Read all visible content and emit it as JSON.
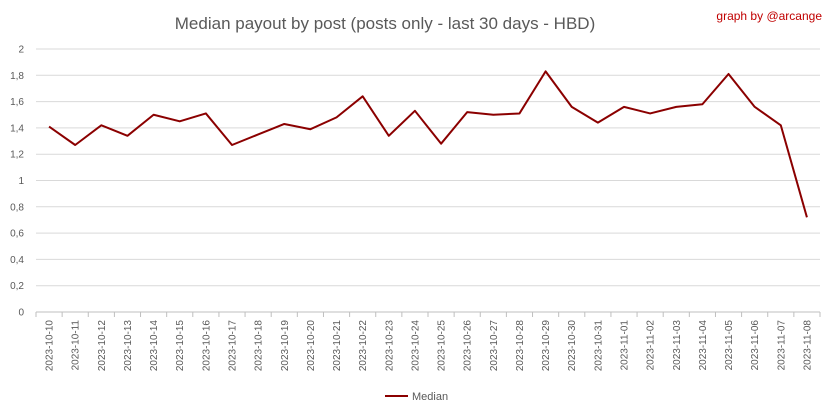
{
  "chart_data": {
    "type": "line",
    "title": "Median payout by post (posts only - last 30 days - HBD)",
    "credit": "graph by @arcange",
    "xlabel": "",
    "ylabel": "",
    "ylim": [
      0,
      2
    ],
    "yticks": [
      "0",
      "0,2",
      "0,4",
      "0,6",
      "0,8",
      "1",
      "1,2",
      "1,4",
      "1,6",
      "1,8",
      "2"
    ],
    "grid": true,
    "legend_position": "bottom",
    "categories": [
      "2023-10-10",
      "2023-10-11",
      "2023-10-12",
      "2023-10-13",
      "2023-10-14",
      "2023-10-15",
      "2023-10-16",
      "2023-10-17",
      "2023-10-18",
      "2023-10-19",
      "2023-10-20",
      "2023-10-21",
      "2023-10-22",
      "2023-10-23",
      "2023-10-24",
      "2023-10-25",
      "2023-10-26",
      "2023-10-27",
      "2023-10-28",
      "2023-10-29",
      "2023-10-30",
      "2023-10-31",
      "2023-11-01",
      "2023-11-02",
      "2023-11-03",
      "2023-11-04",
      "2023-11-05",
      "2023-11-06",
      "2023-11-07",
      "2023-11-08"
    ],
    "series": [
      {
        "name": "Median",
        "color": "#8b0000",
        "values": [
          1.41,
          1.27,
          1.42,
          1.34,
          1.5,
          1.45,
          1.51,
          1.27,
          1.35,
          1.43,
          1.39,
          1.48,
          1.64,
          1.34,
          1.53,
          1.28,
          1.52,
          1.5,
          1.51,
          1.83,
          1.56,
          1.44,
          1.56,
          1.51,
          1.56,
          1.58,
          1.81,
          1.56,
          1.42,
          0.72
        ]
      }
    ]
  }
}
